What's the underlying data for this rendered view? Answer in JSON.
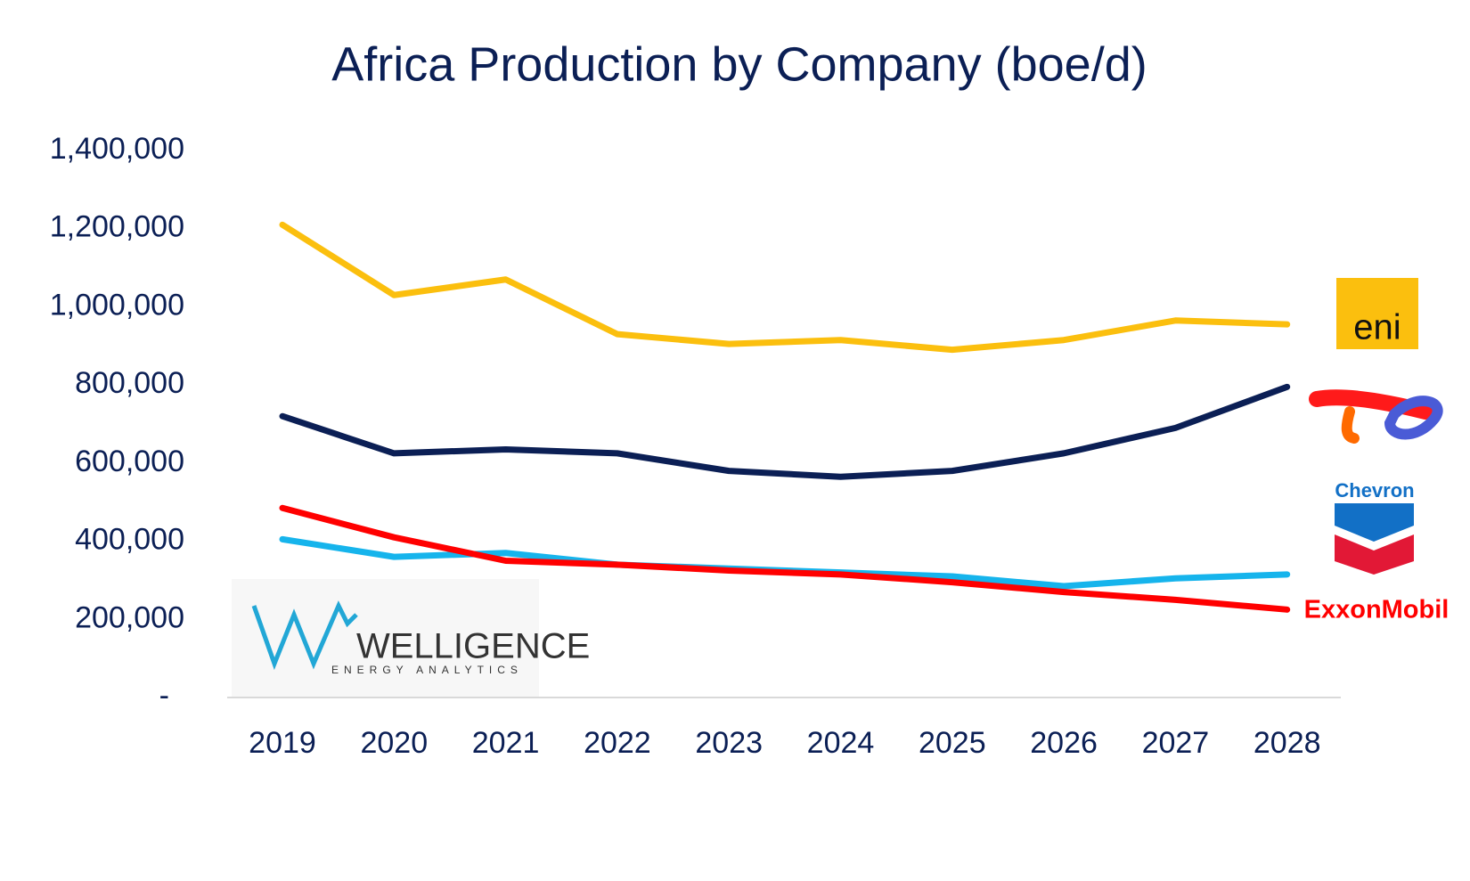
{
  "chart_data": {
    "type": "line",
    "title": "Africa Production by Company (boe/d)",
    "categories": [
      "2019",
      "2020",
      "2021",
      "2022",
      "2023",
      "2024",
      "2025",
      "2026",
      "2027",
      "2028"
    ],
    "series": [
      {
        "name": "eni",
        "color": "#fbbf0e",
        "values": [
          1210000,
          1030000,
          1070000,
          930000,
          905000,
          915000,
          890000,
          915000,
          965000,
          955000
        ]
      },
      {
        "color": "#0b1f55",
        "values": [
          720000,
          625000,
          635000,
          625000,
          580000,
          565000,
          580000,
          625000,
          690000,
          795000
        ]
      },
      {
        "name": "Chevron",
        "color": "#16b4ec",
        "values": [
          405000,
          360000,
          370000,
          340000,
          330000,
          320000,
          310000,
          285000,
          305000,
          315000
        ]
      },
      {
        "name": "ExxonMobil",
        "color": "#ff0000",
        "values": [
          485000,
          410000,
          350000,
          340000,
          325000,
          315000,
          295000,
          270000,
          250000,
          225000
        ]
      }
    ],
    "ylim": [
      0,
      1400000
    ],
    "yticks": [
      {
        "value": 0,
        "label": "-"
      },
      {
        "value": 200000,
        "label": "200,000"
      },
      {
        "value": 400000,
        "label": "400,000"
      },
      {
        "value": 600000,
        "label": "600,000"
      },
      {
        "value": 800000,
        "label": "800,000"
      },
      {
        "value": 1000000,
        "label": "1,000,000"
      },
      {
        "value": 1200000,
        "label": "1,200,000"
      },
      {
        "value": 1400000,
        "label": "1,400,000"
      }
    ],
    "watermark": {
      "name": "WELLIGENCE",
      "tagline": "ENERGY ANALYTICS"
    }
  }
}
